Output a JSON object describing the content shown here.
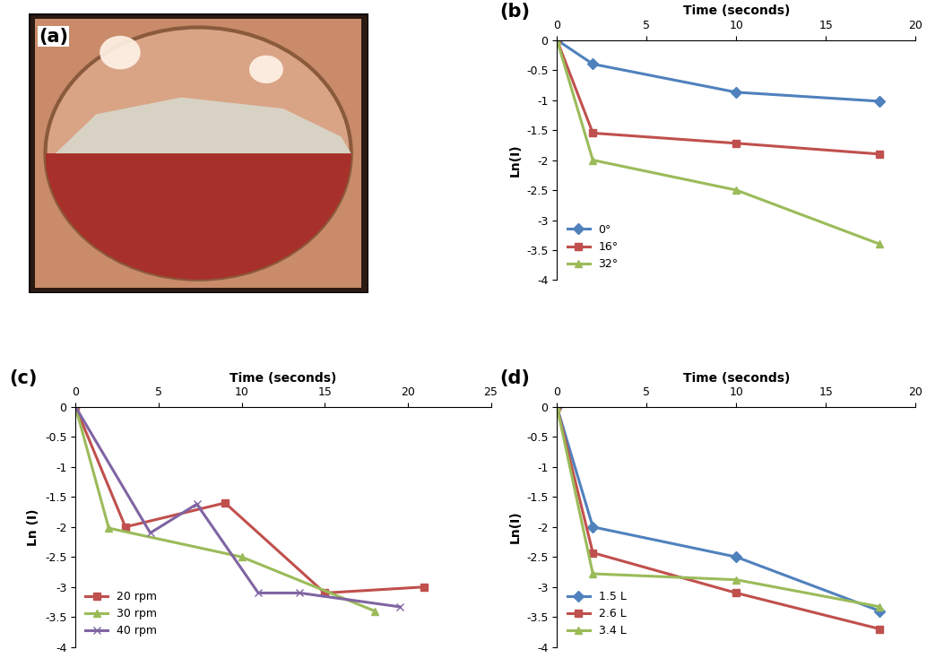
{
  "chart_data": [
    {
      "type": "image",
      "title": "(a)"
    },
    {
      "type": "line",
      "title": "(b)",
      "x_label": "Time (seconds)",
      "y_label": "Ln(I)",
      "xlim": [
        0,
        20
      ],
      "xticks": [
        0,
        5,
        10,
        15,
        20
      ],
      "ylim": [
        -4,
        0
      ],
      "yticks": [
        0,
        -0.5,
        -1,
        -1.5,
        -2,
        -2.5,
        -3,
        -3.5,
        -4
      ],
      "legend": "lower left",
      "series": [
        {
          "name": "0°",
          "color": "#4F81BD",
          "marker": "diamond",
          "x": [
            0,
            2,
            10,
            18
          ],
          "values": [
            0,
            -0.4,
            -0.87,
            -1.02
          ]
        },
        {
          "name": "16°",
          "color": "#C0504D",
          "marker": "square",
          "x": [
            0,
            2,
            10,
            18
          ],
          "values": [
            0,
            -1.55,
            -1.72,
            -1.9
          ]
        },
        {
          "name": "32°",
          "color": "#9BBB59",
          "marker": "triangle",
          "x": [
            0,
            2,
            10,
            18
          ],
          "values": [
            0,
            -2.0,
            -2.5,
            -3.4
          ]
        }
      ]
    },
    {
      "type": "line",
      "title": "(c)",
      "x_label": "Time (seconds)",
      "y_label": "Ln (I)",
      "xlim": [
        0,
        25
      ],
      "xticks": [
        0,
        5,
        10,
        15,
        20,
        25
      ],
      "ylim": [
        -4,
        0
      ],
      "yticks": [
        0,
        -0.5,
        -1,
        -1.5,
        -2,
        -2.5,
        -3,
        -3.5,
        -4
      ],
      "legend": "lower left",
      "series": [
        {
          "name": "20 rpm",
          "color": "#C0504D",
          "marker": "square",
          "x": [
            0,
            3,
            9,
            15,
            21
          ],
          "values": [
            0,
            -2.0,
            -1.6,
            -3.1,
            -3.0
          ]
        },
        {
          "name": "30 rpm",
          "color": "#9BBB59",
          "marker": "triangle",
          "x": [
            0,
            2,
            10,
            18
          ],
          "values": [
            0,
            -2.02,
            -2.5,
            -3.4
          ]
        },
        {
          "name": "40 rpm",
          "color": "#8064A2",
          "marker": "x",
          "x": [
            0,
            4.5,
            7.3,
            11,
            13.5,
            19.5
          ],
          "values": [
            0,
            -2.1,
            -1.62,
            -3.1,
            -3.1,
            -3.33
          ]
        }
      ]
    },
    {
      "type": "line",
      "title": "(d)",
      "x_label": "Time (seconds)",
      "y_label": "Ln(I)",
      "xlim": [
        0,
        20
      ],
      "xticks": [
        0,
        5,
        10,
        15,
        20
      ],
      "ylim": [
        -4,
        0
      ],
      "yticks": [
        0,
        -0.5,
        -1,
        -1.5,
        -2,
        -2.5,
        -3,
        -3.5,
        -4
      ],
      "legend": "lower left",
      "series": [
        {
          "name": "1.5 L",
          "color": "#4F81BD",
          "marker": "diamond",
          "x": [
            0,
            2,
            10,
            18
          ],
          "values": [
            0,
            -2.0,
            -2.5,
            -3.4
          ]
        },
        {
          "name": "2.6 L",
          "color": "#C0504D",
          "marker": "square",
          "x": [
            0,
            2,
            10,
            18
          ],
          "values": [
            0,
            -2.43,
            -3.1,
            -3.7
          ]
        },
        {
          "name": "3.4 L",
          "color": "#9BBB59",
          "marker": "triangle",
          "x": [
            0,
            2,
            10,
            18
          ],
          "values": [
            0,
            -2.78,
            -2.88,
            -3.33
          ]
        }
      ]
    }
  ]
}
